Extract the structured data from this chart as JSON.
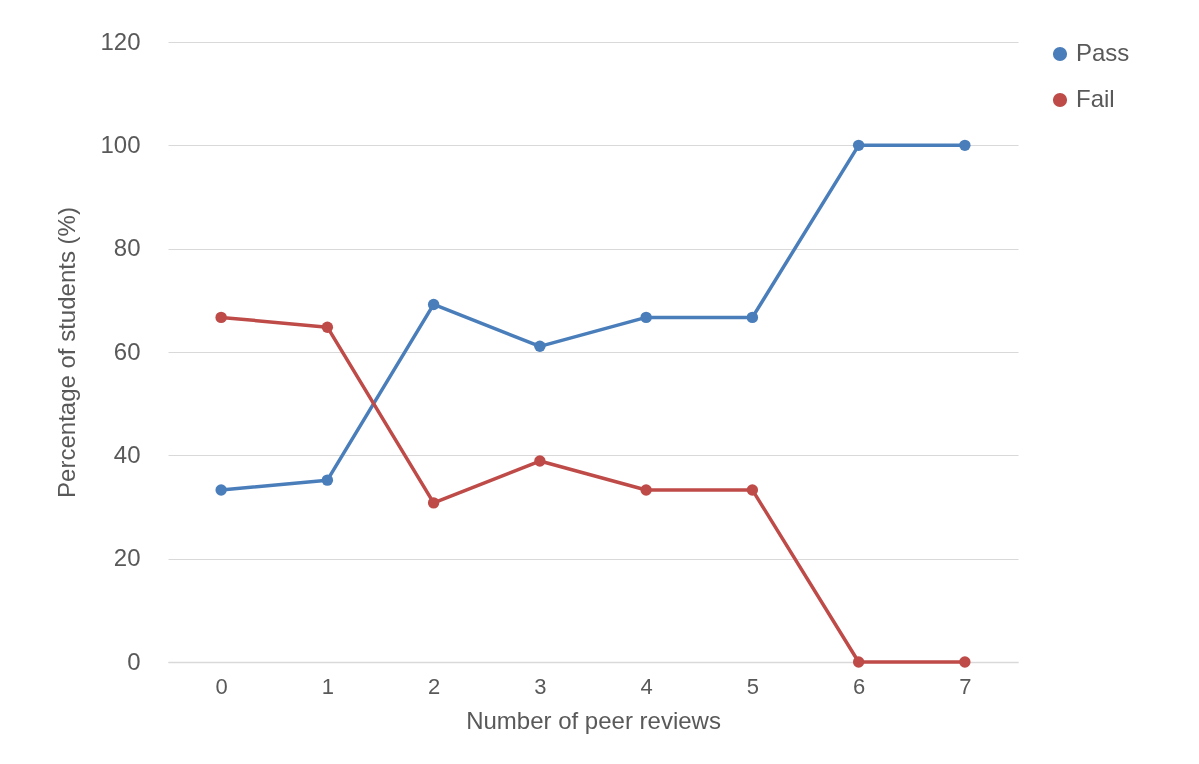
{
  "chart_data": {
    "type": "line",
    "xlabel": "Number of peer reviews",
    "ylabel": "Percentage of students (%)",
    "categories": [
      "0",
      "1",
      "2",
      "3",
      "4",
      "5",
      "6",
      "7"
    ],
    "series": [
      {
        "name": "Pass",
        "color": "#4a7ebb",
        "values": [
          33.3,
          35.2,
          69.2,
          61.1,
          66.7,
          66.7,
          100,
          100
        ]
      },
      {
        "name": "Fail",
        "color": "#be4b48",
        "values": [
          66.7,
          64.8,
          30.8,
          38.9,
          33.3,
          33.3,
          0,
          0
        ]
      }
    ],
    "ylim": [
      0,
      120
    ],
    "yticks": [
      0,
      20,
      40,
      60,
      80,
      100,
      120
    ],
    "grid": "y",
    "legend": "right",
    "marker": "circle",
    "line_style": "solid"
  }
}
